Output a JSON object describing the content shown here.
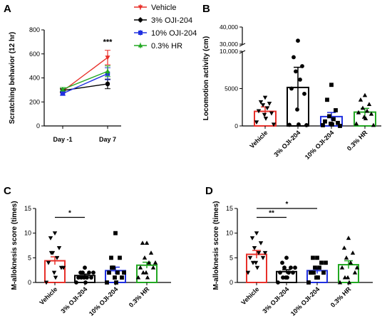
{
  "chart_data": [
    {
      "panel": "A",
      "type": "line",
      "ylabel": "Scratching behavior (12 hr)",
      "categories": [
        "Day -1",
        "Day 7"
      ],
      "yticks": [
        0,
        200,
        400,
        600,
        800
      ],
      "ylim": [
        0,
        800
      ],
      "series": [
        {
          "name": "Vehicle",
          "color": "#e8302a",
          "marker": "triangle-down",
          "values": [
            290,
            570
          ],
          "err": [
            15,
            60
          ]
        },
        {
          "name": "3% OJI-204",
          "color": "#000000",
          "marker": "circle",
          "values": [
            295,
            350
          ],
          "err": [
            15,
            40
          ]
        },
        {
          "name": "10% OJI-204",
          "color": "#2030e0",
          "marker": "square",
          "values": [
            270,
            435
          ],
          "err": [
            15,
            50
          ]
        },
        {
          "name": "0.3% HR",
          "color": "#22a822",
          "marker": "triangle-up",
          "values": [
            305,
            455
          ],
          "err": [
            15,
            45
          ]
        }
      ],
      "annotations": [
        {
          "text": "***",
          "category": "Day 7"
        }
      ]
    },
    {
      "panel": "B",
      "type": "bar",
      "ylabel": "Locomotion activity (cm)",
      "categories": [
        "Vehicle",
        "3% OJI-204",
        "10% OJI-204",
        "0.3% HR"
      ],
      "yticks": [
        "0",
        "5000",
        "10,000",
        "30,000",
        "40,000"
      ],
      "values": [
        1950,
        5150,
        1250,
        1850
      ],
      "err": [
        600,
        2700,
        550,
        500
      ],
      "colors": [
        "#e8302a",
        "#000000",
        "#2030e0",
        "#22a822"
      ],
      "markers": [
        "triangle-down",
        "circle",
        "square",
        "triangle-up"
      ],
      "points": [
        [
          3800,
          3200,
          3000,
          2800,
          2400,
          2000,
          1700,
          1500,
          1000,
          500,
          200
        ],
        [
          32000,
          9200,
          8000,
          7300,
          6200,
          5000,
          4300,
          2200,
          200,
          150,
          100
        ],
        [
          5500,
          3500,
          2100,
          1300,
          900,
          600,
          400,
          300,
          200,
          100,
          0
        ],
        [
          4100,
          3500,
          2900,
          2400,
          2000,
          1800,
          1600,
          1200,
          1000,
          300,
          100
        ]
      ],
      "axis_break": {
        "lower_max": 10000,
        "upper_range": [
          30000,
          40000
        ]
      }
    },
    {
      "panel": "C",
      "type": "bar",
      "ylabel": "M-alloknesis score (times)",
      "categories": [
        "Vehicle",
        "3% OJI-204",
        "10% OJI-204",
        "0.3% HR"
      ],
      "yticks": [
        0,
        5,
        10,
        15
      ],
      "ylim": [
        0,
        15
      ],
      "values": [
        4.4,
        1.4,
        2.4,
        3.5
      ],
      "err": [
        0.8,
        0.3,
        0.7,
        0.6
      ],
      "colors": [
        "#e8302a",
        "#000000",
        "#2030e0",
        "#22a822"
      ],
      "markers": [
        "triangle-down",
        "circle",
        "square",
        "triangle-up"
      ],
      "points": [
        [
          10,
          9,
          7,
          6,
          5,
          4,
          3,
          2,
          1,
          0,
          3,
          6
        ],
        [
          3,
          2,
          2,
          2,
          1,
          1,
          1,
          1,
          0,
          0,
          2,
          1
        ],
        [
          10,
          5,
          5,
          3,
          2,
          2,
          1,
          1,
          0,
          0,
          2,
          3
        ],
        [
          8,
          8,
          6,
          5,
          4,
          3,
          3,
          2,
          1,
          1,
          4,
          2
        ]
      ],
      "significance": [
        {
          "text": "*",
          "from": 0,
          "to": 1
        }
      ]
    },
    {
      "panel": "D",
      "type": "bar",
      "ylabel": "M-alloknesis score (times)",
      "categories": [
        "Vehicle",
        "3% OJI-204",
        "10% OJI-204",
        "0.3% HR"
      ],
      "yticks": [
        0,
        5,
        10,
        15
      ],
      "ylim": [
        0,
        15
      ],
      "values": [
        5.7,
        2.2,
        2.4,
        3.6
      ],
      "err": [
        0.8,
        0.4,
        0.6,
        0.8
      ],
      "colors": [
        "#e8302a",
        "#000000",
        "#2030e0",
        "#22a822"
      ],
      "markers": [
        "triangle-down",
        "circle",
        "square",
        "triangle-up"
      ],
      "points": [
        [
          10,
          9,
          8,
          7,
          6,
          5,
          5,
          4,
          3,
          2,
          6,
          4
        ],
        [
          5,
          4,
          3,
          3,
          2,
          2,
          2,
          1,
          1,
          0,
          3,
          1
        ],
        [
          5,
          5,
          4,
          3,
          3,
          2,
          2,
          1,
          1,
          0,
          4,
          2
        ],
        [
          9,
          7,
          6,
          5,
          4,
          3,
          2,
          1,
          0,
          0,
          3,
          1
        ]
      ],
      "significance": [
        {
          "text": "**",
          "from": 0,
          "to": 1
        },
        {
          "text": "*",
          "from": 0,
          "to": 2
        }
      ]
    }
  ]
}
